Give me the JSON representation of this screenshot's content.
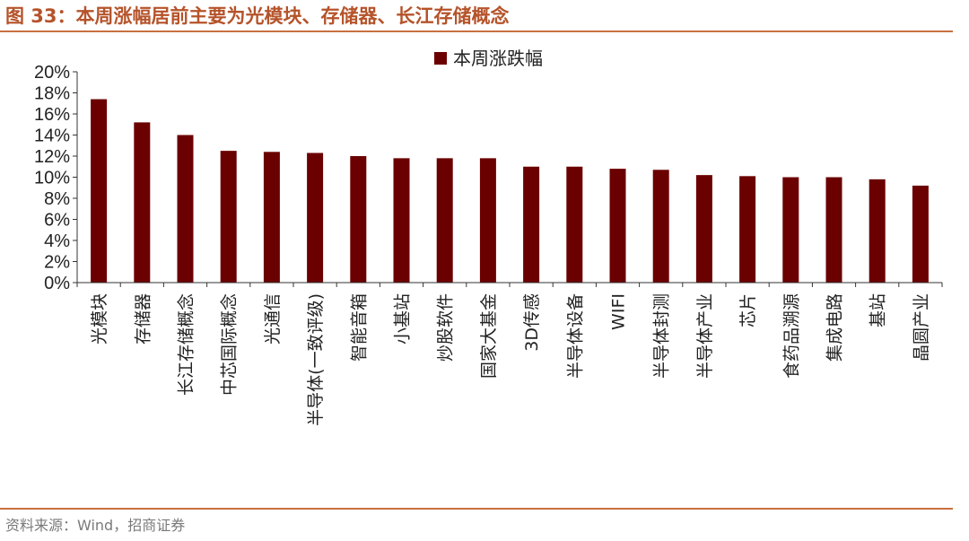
{
  "header": {
    "title": "图 33：本周涨幅居前主要为光模块、存储器、长江存储概念"
  },
  "footer": {
    "source": "资料来源：Wind，招商证券"
  },
  "colors": {
    "accent": "#b5532a",
    "rule": "#c9703f",
    "bar": "#6b0000"
  },
  "chart_data": {
    "type": "bar",
    "categories": [
      "光模块",
      "存储器",
      "长江存储概念",
      "中芯国际概念",
      "光通信",
      "半导体(一致评级)",
      "智能音箱",
      "小基站",
      "炒股软件",
      "国家大基金",
      "3D传感",
      "半导体设备",
      "WIFI",
      "半导体封测",
      "半导体产业",
      "芯片",
      "食药品溯源",
      "集成电路",
      "基站",
      "晶圆产业"
    ],
    "series": [
      {
        "name": "本周涨跌幅",
        "values": [
          17.4,
          15.2,
          14.0,
          12.5,
          12.4,
          12.3,
          12.0,
          11.8,
          11.8,
          11.8,
          11.0,
          11.0,
          10.8,
          10.7,
          10.2,
          10.1,
          10.0,
          10.0,
          9.8,
          9.2
        ]
      }
    ],
    "yticks": [
      "0%",
      "2%",
      "4%",
      "6%",
      "8%",
      "10%",
      "12%",
      "14%",
      "16%",
      "18%",
      "20%"
    ],
    "ylim": [
      0,
      20
    ],
    "legend": "top-center",
    "grid": false
  }
}
